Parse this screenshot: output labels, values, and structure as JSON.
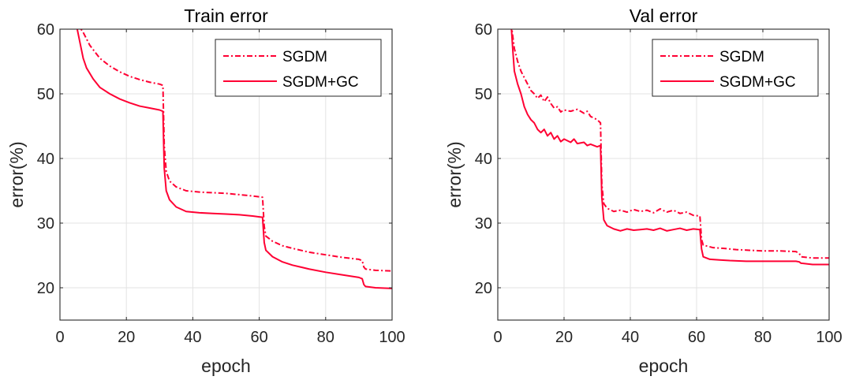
{
  "chart_data": [
    {
      "type": "line",
      "title": "Train error",
      "xlabel": "epoch",
      "ylabel": "error(%)",
      "xlim": [
        0,
        100
      ],
      "ylim": [
        15,
        60
      ],
      "xticks": [
        0,
        20,
        40,
        60,
        80,
        100
      ],
      "yticks": [
        20,
        30,
        40,
        50,
        60
      ],
      "grid": true,
      "legend_position": "top-right",
      "series": [
        {
          "name": "SGDM",
          "style": "dashdot",
          "color": "#ff0033",
          "points": [
            [
              5,
              61
            ],
            [
              7,
              59.5
            ],
            [
              9,
              57.5
            ],
            [
              12,
              55.5
            ],
            [
              15,
              54.3
            ],
            [
              18,
              53.4
            ],
            [
              21,
              52.7
            ],
            [
              24,
              52.2
            ],
            [
              27,
              51.8
            ],
            [
              30,
              51.5
            ],
            [
              31,
              51.3
            ],
            [
              31.4,
              42
            ],
            [
              32,
              38
            ],
            [
              33,
              36.5
            ],
            [
              35,
              35.6
            ],
            [
              38,
              35
            ],
            [
              42,
              34.8
            ],
            [
              46,
              34.7
            ],
            [
              50,
              34.6
            ],
            [
              54,
              34.4
            ],
            [
              58,
              34.2
            ],
            [
              61,
              34.0
            ],
            [
              61.5,
              29.5
            ],
            [
              62,
              28
            ],
            [
              64,
              27.2
            ],
            [
              67,
              26.5
            ],
            [
              70,
              26.1
            ],
            [
              75,
              25.5
            ],
            [
              80,
              25.1
            ],
            [
              85,
              24.7
            ],
            [
              90,
              24.4
            ],
            [
              91,
              24.2
            ],
            [
              91.5,
              23.2
            ],
            [
              92,
              22.9
            ],
            [
              95,
              22.7
            ],
            [
              100,
              22.6
            ]
          ]
        },
        {
          "name": "SGDM+GC",
          "style": "solid",
          "color": "#ff0033",
          "points": [
            [
              5,
              60.5
            ],
            [
              6,
              58
            ],
            [
              7,
              55.5
            ],
            [
              8,
              54
            ],
            [
              10,
              52.3
            ],
            [
              12,
              51
            ],
            [
              15,
              50
            ],
            [
              18,
              49.2
            ],
            [
              21,
              48.6
            ],
            [
              24,
              48.1
            ],
            [
              27,
              47.8
            ],
            [
              30,
              47.5
            ],
            [
              31,
              47.3
            ],
            [
              31.4,
              38.5
            ],
            [
              32,
              35
            ],
            [
              33,
              33.6
            ],
            [
              35,
              32.5
            ],
            [
              38,
              31.8
            ],
            [
              42,
              31.6
            ],
            [
              46,
              31.5
            ],
            [
              50,
              31.4
            ],
            [
              54,
              31.3
            ],
            [
              58,
              31.1
            ],
            [
              61,
              30.9
            ],
            [
              61.5,
              27
            ],
            [
              62,
              25.8
            ],
            [
              64,
              24.8
            ],
            [
              67,
              24
            ],
            [
              70,
              23.5
            ],
            [
              75,
              22.9
            ],
            [
              80,
              22.4
            ],
            [
              85,
              22
            ],
            [
              90,
              21.6
            ],
            [
              91,
              21.4
            ],
            [
              91.5,
              20.5
            ],
            [
              92,
              20.2
            ],
            [
              95,
              20.0
            ],
            [
              100,
              19.9
            ]
          ]
        }
      ]
    },
    {
      "type": "line",
      "title": "Val error",
      "xlabel": "epoch",
      "ylabel": "error(%)",
      "xlim": [
        0,
        100
      ],
      "ylim": [
        15,
        60
      ],
      "xticks": [
        0,
        20,
        40,
        60,
        80,
        100
      ],
      "yticks": [
        20,
        30,
        40,
        50,
        60
      ],
      "grid": true,
      "legend_position": "top-right",
      "series": [
        {
          "name": "SGDM",
          "style": "dashdot",
          "color": "#ff0033",
          "points": [
            [
              4,
              61
            ],
            [
              5,
              57
            ],
            [
              6,
              55
            ],
            [
              7,
              53.5
            ],
            [
              8,
              52.5
            ],
            [
              9,
              51.5
            ],
            [
              10,
              50.5
            ],
            [
              11,
              50
            ],
            [
              12,
              49.3
            ],
            [
              13,
              49.8
            ],
            [
              14,
              48.8
            ],
            [
              15,
              49.5
            ],
            [
              16,
              48.5
            ],
            [
              17,
              47.8
            ],
            [
              18,
              48
            ],
            [
              19,
              47.2
            ],
            [
              20,
              47.5
            ],
            [
              22,
              47.3
            ],
            [
              24,
              47.6
            ],
            [
              26,
              47
            ],
            [
              27,
              47.3
            ],
            [
              28,
              46.5
            ],
            [
              30,
              46
            ],
            [
              31,
              45.5
            ],
            [
              31.4,
              36
            ],
            [
              32,
              33
            ],
            [
              33,
              32.3
            ],
            [
              35,
              31.8
            ],
            [
              37,
              32
            ],
            [
              39,
              31.7
            ],
            [
              41,
              32.1
            ],
            [
              43,
              31.8
            ],
            [
              45,
              32
            ],
            [
              47,
              31.6
            ],
            [
              49,
              32.2
            ],
            [
              51,
              31.7
            ],
            [
              53,
              32
            ],
            [
              55,
              31.5
            ],
            [
              57,
              31.7
            ],
            [
              59,
              31.2
            ],
            [
              61,
              31.1
            ],
            [
              61.5,
              27.5
            ],
            [
              62,
              26.6
            ],
            [
              65,
              26.2
            ],
            [
              68,
              26.1
            ],
            [
              72,
              25.9
            ],
            [
              76,
              25.8
            ],
            [
              80,
              25.7
            ],
            [
              85,
              25.7
            ],
            [
              90,
              25.6
            ],
            [
              91,
              25.3
            ],
            [
              91.5,
              24.8
            ],
            [
              95,
              24.6
            ],
            [
              100,
              24.6
            ]
          ]
        },
        {
          "name": "SGDM+GC",
          "style": "solid",
          "color": "#ff0033",
          "points": [
            [
              4,
              61
            ],
            [
              4.5,
              57
            ],
            [
              5,
              53.5
            ],
            [
              6,
              51.5
            ],
            [
              7,
              50
            ],
            [
              8,
              48
            ],
            [
              9,
              46.8
            ],
            [
              10,
              46
            ],
            [
              11,
              45.5
            ],
            [
              12,
              44.5
            ],
            [
              13,
              44
            ],
            [
              14,
              44.5
            ],
            [
              15,
              43.5
            ],
            [
              16,
              44
            ],
            [
              17,
              43
            ],
            [
              18,
              43.5
            ],
            [
              19,
              42.6
            ],
            [
              20,
              43
            ],
            [
              22,
              42.5
            ],
            [
              23,
              43
            ],
            [
              24,
              42.3
            ],
            [
              26,
              42.5
            ],
            [
              27,
              42
            ],
            [
              28,
              42.2
            ],
            [
              30,
              41.8
            ],
            [
              31,
              42
            ],
            [
              31.4,
              34
            ],
            [
              32,
              30.5
            ],
            [
              33,
              29.6
            ],
            [
              35,
              29.1
            ],
            [
              37,
              28.8
            ],
            [
              39,
              29.1
            ],
            [
              41,
              28.9
            ],
            [
              43,
              29
            ],
            [
              45,
              29.1
            ],
            [
              47,
              28.9
            ],
            [
              49,
              29.2
            ],
            [
              51,
              28.8
            ],
            [
              53,
              29
            ],
            [
              55,
              29.2
            ],
            [
              57,
              28.9
            ],
            [
              59,
              29.1
            ],
            [
              61,
              29
            ],
            [
              61.5,
              26
            ],
            [
              62,
              24.8
            ],
            [
              64,
              24.4
            ],
            [
              67,
              24.3
            ],
            [
              70,
              24.2
            ],
            [
              75,
              24.1
            ],
            [
              80,
              24.1
            ],
            [
              85,
              24.1
            ],
            [
              90,
              24.1
            ],
            [
              91,
              24
            ],
            [
              91.5,
              23.8
            ],
            [
              95,
              23.6
            ],
            [
              100,
              23.6
            ]
          ]
        }
      ]
    }
  ]
}
